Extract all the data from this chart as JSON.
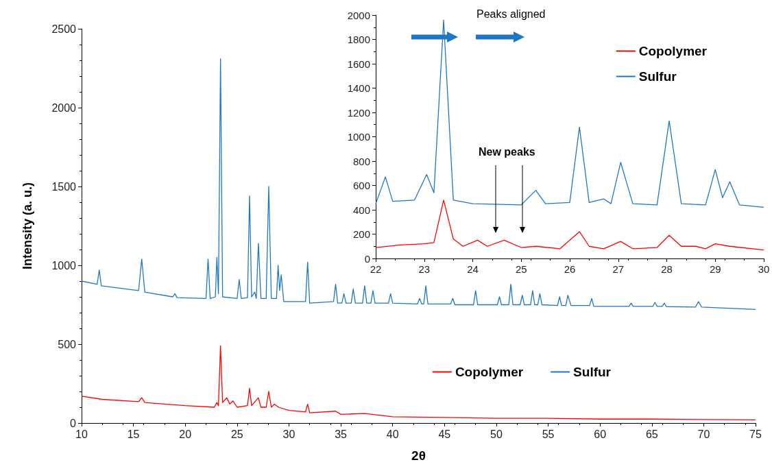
{
  "chart_data": [
    {
      "type": "line",
      "xlabel": "2θ",
      "ylabel": "Intensity (a. u.)",
      "xlim": [
        10,
        75
      ],
      "xticks": [
        10,
        15,
        20,
        25,
        30,
        35,
        40,
        45,
        50,
        55,
        60,
        65,
        70,
        75
      ],
      "ylim": [
        0,
        2500
      ],
      "yticks": [
        0,
        500,
        1000,
        1500,
        2000,
        2500
      ],
      "grid": false,
      "legend": "bottom right",
      "marker": "none",
      "line_style": "solid",
      "series": [
        {
          "name": "Copolymer",
          "color": "#ff0000",
          "x": [
            10,
            12,
            15.5,
            15.8,
            16.1,
            20,
            22.8,
            23.05,
            23.2,
            23.4,
            23.6,
            24,
            24.3,
            24.6,
            25,
            26,
            26.2,
            26.4,
            27.05,
            27.3,
            27.8,
            28.05,
            28.3,
            28.6,
            29,
            30,
            31.6,
            31.8,
            32,
            34.5,
            35,
            37.3,
            40,
            45,
            50,
            55,
            60,
            65,
            70,
            75
          ],
          "values": [
            170,
            150,
            135,
            160,
            130,
            110,
            100,
            130,
            110,
            490,
            130,
            160,
            120,
            140,
            100,
            110,
            220,
            110,
            160,
            100,
            100,
            200,
            100,
            120,
            100,
            80,
            70,
            120,
            65,
            75,
            55,
            60,
            40,
            35,
            30,
            30,
            25,
            25,
            22,
            20
          ]
        },
        {
          "name": "Sulfur",
          "color": "#1f77c4",
          "x": [
            10,
            11.5,
            11.7,
            11.9,
            15.5,
            15.8,
            16.1,
            18.8,
            19,
            19.2,
            22,
            22.2,
            22.4,
            22.9,
            23.05,
            23.2,
            23.4,
            23.6,
            25,
            25.2,
            25.4,
            26,
            26.2,
            26.4,
            26.7,
            26.85,
            27.05,
            27.3,
            27.8,
            28.05,
            28.3,
            28.8,
            28.95,
            29.1,
            29.25,
            29.5,
            31.6,
            31.8,
            32,
            34.3,
            34.5,
            34.7,
            35.1,
            35.3,
            35.5,
            36,
            36.2,
            36.4,
            37.1,
            37.3,
            37.5,
            37.9,
            38.1,
            38.3,
            39.6,
            39.8,
            40,
            42.4,
            42.6,
            42.8,
            43,
            43.2,
            43.4,
            45.6,
            45.8,
            46,
            47.8,
            48,
            48.2,
            50.1,
            50.3,
            50.5,
            51.2,
            51.4,
            51.6,
            52.3,
            52.5,
            52.7,
            53.3,
            53.5,
            53.7,
            54,
            54.2,
            54.4,
            55.9,
            56.1,
            56.3,
            56.7,
            56.9,
            57.2,
            59,
            59.2,
            59.4,
            62.8,
            63,
            63.2,
            65.1,
            65.3,
            65.5,
            66,
            66.2,
            66.4,
            69.2,
            69.5,
            69.8,
            75
          ],
          "values": [
            900,
            880,
            970,
            870,
            840,
            1040,
            830,
            800,
            820,
            795,
            790,
            1040,
            790,
            800,
            1050,
            820,
            2310,
            800,
            790,
            910,
            790,
            795,
            1440,
            800,
            830,
            790,
            1140,
            790,
            790,
            1500,
            790,
            790,
            1000,
            840,
            940,
            770,
            770,
            1020,
            760,
            770,
            880,
            760,
            760,
            820,
            760,
            760,
            850,
            760,
            760,
            870,
            760,
            760,
            840,
            760,
            760,
            820,
            760,
            755,
            790,
            755,
            755,
            870,
            755,
            755,
            790,
            750,
            750,
            840,
            750,
            750,
            800,
            750,
            750,
            880,
            750,
            750,
            810,
            750,
            750,
            840,
            750,
            750,
            820,
            750,
            745,
            800,
            745,
            745,
            810,
            745,
            745,
            790,
            740,
            740,
            760,
            740,
            740,
            765,
            740,
            740,
            760,
            738,
            735,
            770,
            735,
            720
          ]
        }
      ]
    },
    {
      "type": "line",
      "annotations": [
        "Peaks aligned",
        "New peaks"
      ],
      "xlim": [
        22,
        30
      ],
      "xticks": [
        22,
        23,
        24,
        25,
        26,
        27,
        28,
        29,
        30
      ],
      "ylim": [
        0,
        2000
      ],
      "yticks": [
        0,
        200,
        400,
        600,
        800,
        1000,
        1200,
        1400,
        1600,
        1800,
        2000
      ],
      "grid": false,
      "legend": "top right",
      "marker": "none",
      "line_style": "solid",
      "series": [
        {
          "name": "Copolymer",
          "color": "#ff0000",
          "x": [
            22,
            22.5,
            23,
            23.2,
            23.4,
            23.6,
            23.8,
            24.1,
            24.3,
            24.65,
            25,
            25.3,
            25.8,
            26.2,
            26.4,
            26.7,
            27.05,
            27.3,
            27.8,
            28.05,
            28.3,
            28.6,
            28.8,
            29,
            29.3,
            30
          ],
          "values": [
            90,
            110,
            120,
            130,
            480,
            160,
            100,
            150,
            100,
            150,
            90,
            100,
            80,
            220,
            100,
            80,
            140,
            80,
            90,
            190,
            100,
            100,
            80,
            120,
            100,
            70
          ]
        },
        {
          "name": "Sulfur",
          "color": "#1f77c4",
          "x": [
            22,
            22.2,
            22.35,
            22.8,
            23.05,
            23.2,
            23.4,
            23.6,
            24,
            25,
            25.3,
            25.5,
            26,
            26.2,
            26.4,
            26.7,
            26.85,
            27.05,
            27.3,
            27.8,
            28.05,
            28.3,
            28.8,
            29,
            29.15,
            29.3,
            29.5,
            30
          ],
          "values": [
            450,
            670,
            470,
            480,
            690,
            540,
            1960,
            480,
            450,
            440,
            560,
            450,
            460,
            1080,
            460,
            490,
            450,
            790,
            450,
            440,
            1130,
            450,
            440,
            730,
            500,
            630,
            440,
            420
          ]
        }
      ]
    }
  ]
}
